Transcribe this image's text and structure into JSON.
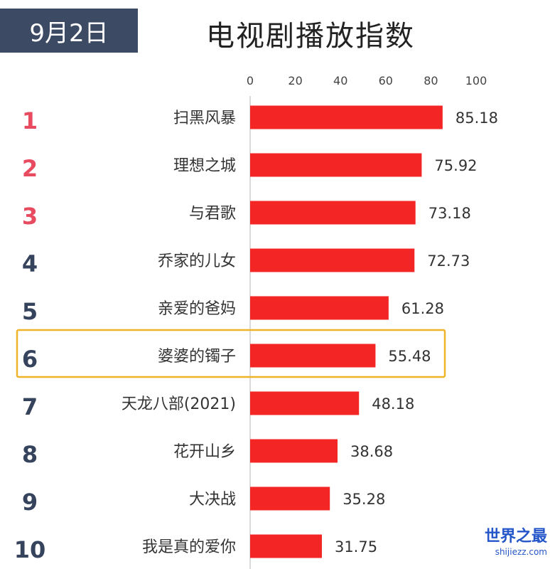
{
  "header": {
    "date": "9月2日",
    "title": "电视剧播放指数"
  },
  "colors": {
    "badge": "#3d4a63",
    "bar": "#f42525",
    "rank_top": "#e84a5f",
    "rank_other": "#36435c",
    "highlight": "#f0b429",
    "axis": "#d9d9d9"
  },
  "chart_data": {
    "type": "bar",
    "orientation": "horizontal",
    "ranks": [
      "1",
      "2",
      "3",
      "4",
      "5",
      "6",
      "7",
      "8",
      "9",
      "10"
    ],
    "categories": [
      "扫黑风暴",
      "理想之城",
      "与君歌",
      "乔家的儿女",
      "亲爱的爸妈",
      "婆婆的镯子",
      "天龙八部(2021)",
      "花开山乡",
      "大决战",
      "我是真的爱你"
    ],
    "values": [
      85.18,
      75.92,
      73.18,
      72.73,
      61.28,
      55.48,
      48.18,
      38.68,
      35.28,
      31.75
    ],
    "value_labels": [
      "85.18",
      "75.92",
      "73.18",
      "72.73",
      "61.28",
      "55.48",
      "48.18",
      "38.68",
      "35.28",
      "31.75"
    ],
    "xlim": [
      0,
      100
    ],
    "x_ticks": [
      0,
      20,
      40,
      60,
      80,
      100
    ],
    "x_tick_labels": [
      "0",
      "20",
      "40",
      "60",
      "80",
      "100"
    ],
    "axis_position": "top",
    "grid": false,
    "highlighted_category": "婆婆的镯子"
  },
  "watermark": {
    "text": "世界之最",
    "url": "shijiezz.com"
  }
}
